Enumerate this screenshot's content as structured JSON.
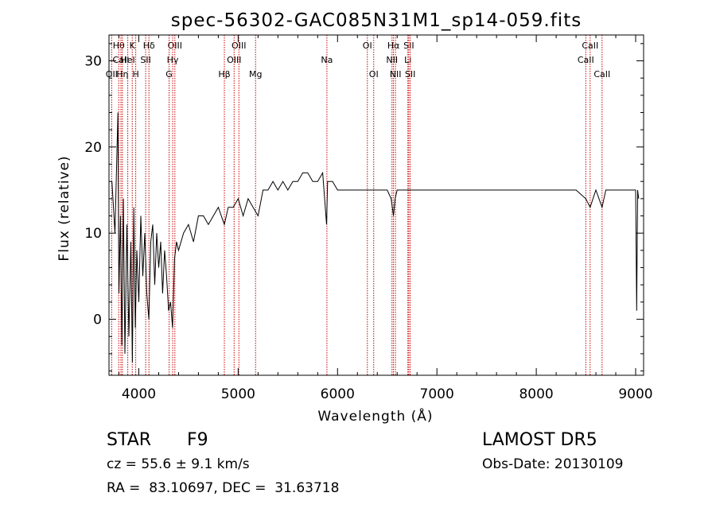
{
  "chart_data": {
    "type": "line",
    "title": "spec-56302-GAC085N31M1_sp14-059.fits",
    "xlabel": "Wavelength (Å)",
    "ylabel": "Flux (relative)",
    "xlim": [
      3700,
      9080
    ],
    "ylim": [
      -6.5,
      33
    ],
    "xticks": [
      4000,
      5000,
      6000,
      7000,
      8000,
      9000
    ],
    "yticks": [
      0,
      10,
      20,
      30
    ],
    "line_color": "#000000",
    "marker_color": "#cc0000",
    "grid": false,
    "series": [
      {
        "x": [
          3730,
          3760,
          3790,
          3800,
          3815,
          3830,
          3845,
          3860,
          3880,
          3900,
          3920,
          3935,
          3950,
          3965,
          3980,
          4000,
          4020,
          4040,
          4060,
          4080,
          4101,
          4120,
          4140,
          4160,
          4180,
          4200,
          4220,
          4240,
          4260,
          4280,
          4300,
          4320,
          4340,
          4360,
          4380,
          4400,
          4450,
          4500,
          4550,
          4600,
          4650,
          4700,
          4750,
          4800,
          4861,
          4900,
          4950,
          5000,
          5050,
          5100,
          5150,
          5200,
          5250,
          5300,
          5350,
          5400,
          5450,
          5500,
          5550,
          5600,
          5650,
          5700,
          5750,
          5800,
          5850,
          5890,
          5900,
          5950,
          6000,
          6050,
          6100,
          6150,
          6200,
          6250,
          6300,
          6350,
          6400,
          6450,
          6500,
          6540,
          6563,
          6580,
          6600,
          6650,
          6700,
          6750,
          6800,
          6850,
          6900,
          7000,
          7100,
          7200,
          7300,
          7400,
          7500,
          7600,
          7700,
          7800,
          7900,
          8000,
          8100,
          8200,
          8300,
          8400,
          8498,
          8542,
          8600,
          8662,
          8700,
          8800,
          8900,
          8950,
          9000,
          9010,
          9020,
          9030
        ],
        "y": [
          16,
          10,
          24,
          3,
          12,
          -3,
          14,
          -4,
          11,
          -2,
          9,
          -5,
          13,
          -1,
          8,
          2,
          12,
          5,
          10,
          3,
          0,
          9,
          11,
          4,
          10,
          6,
          9,
          3,
          8,
          5,
          1,
          2,
          -1,
          7,
          9,
          8,
          10,
          11,
          9,
          12,
          12,
          11,
          12,
          13,
          11,
          13,
          13,
          14,
          12,
          14,
          13,
          12,
          15,
          15,
          16,
          15,
          16,
          15,
          16,
          16,
          17,
          17,
          16,
          16,
          17,
          11,
          16,
          16,
          15,
          15,
          15,
          15,
          15,
          15,
          15,
          15,
          15,
          15,
          15,
          14,
          12,
          14,
          15,
          15,
          15,
          15,
          15,
          15,
          15,
          15,
          15,
          15,
          15,
          15,
          15,
          15,
          15,
          15,
          15,
          15,
          15,
          15,
          15,
          15,
          14,
          13,
          15,
          13,
          15,
          15,
          15,
          15,
          15,
          1,
          15,
          14
        ]
      }
    ],
    "line_markers": [
      {
        "label": "Hθ",
        "wave": 3798,
        "row": 0
      },
      {
        "label": "CaII",
        "wave": 3820,
        "row": 1
      },
      {
        "label": "OII",
        "wave": 3727,
        "row": 2
      },
      {
        "label": "Hη",
        "wave": 3835,
        "row": 2
      },
      {
        "label": "K",
        "wave": 3934,
        "row": 0
      },
      {
        "label": "HeI",
        "wave": 3889,
        "row": 1
      },
      {
        "label": "H",
        "wave": 3969,
        "row": 2
      },
      {
        "label": "Hδ",
        "wave": 4102,
        "row": 0
      },
      {
        "label": "SII",
        "wave": 4069,
        "row": 1
      },
      {
        "label": "OIII",
        "wave": 4363,
        "row": 0
      },
      {
        "label": "Hγ",
        "wave": 4341,
        "row": 1
      },
      {
        "label": "G",
        "wave": 4305,
        "row": 2
      },
      {
        "label": "OIII",
        "wave": 5007,
        "row": 0
      },
      {
        "label": "OIII",
        "wave": 4959,
        "row": 1
      },
      {
        "label": "Hβ",
        "wave": 4861,
        "row": 2
      },
      {
        "label": "Mg",
        "wave": 5175,
        "row": 2
      },
      {
        "label": "Na",
        "wave": 5893,
        "row": 1
      },
      {
        "label": "OI",
        "wave": 6300,
        "row": 0
      },
      {
        "label": "OI",
        "wave": 6364,
        "row": 2
      },
      {
        "label": "Hα",
        "wave": 6563,
        "row": 0
      },
      {
        "label": "NII",
        "wave": 6548,
        "row": 1
      },
      {
        "label": "NII",
        "wave": 6583,
        "row": 2
      },
      {
        "label": "SII",
        "wave": 6717,
        "row": 0
      },
      {
        "label": "Li",
        "wave": 6708,
        "row": 1
      },
      {
        "label": "SII",
        "wave": 6731,
        "row": 2
      },
      {
        "label": "CaII",
        "wave": 8542,
        "row": 0
      },
      {
        "label": "CaII",
        "wave": 8498,
        "row": 1
      },
      {
        "label": "CaII",
        "wave": 8662,
        "row": 2
      }
    ]
  },
  "info": {
    "object_class": "STAR",
    "subclass": "F9",
    "survey": "LAMOST DR5",
    "cz": "cz = 55.6 ± 9.1 km/s",
    "obs_date": "Obs-Date: 20130109",
    "coords": "RA =  83.10697, DEC =  31.63718"
  }
}
